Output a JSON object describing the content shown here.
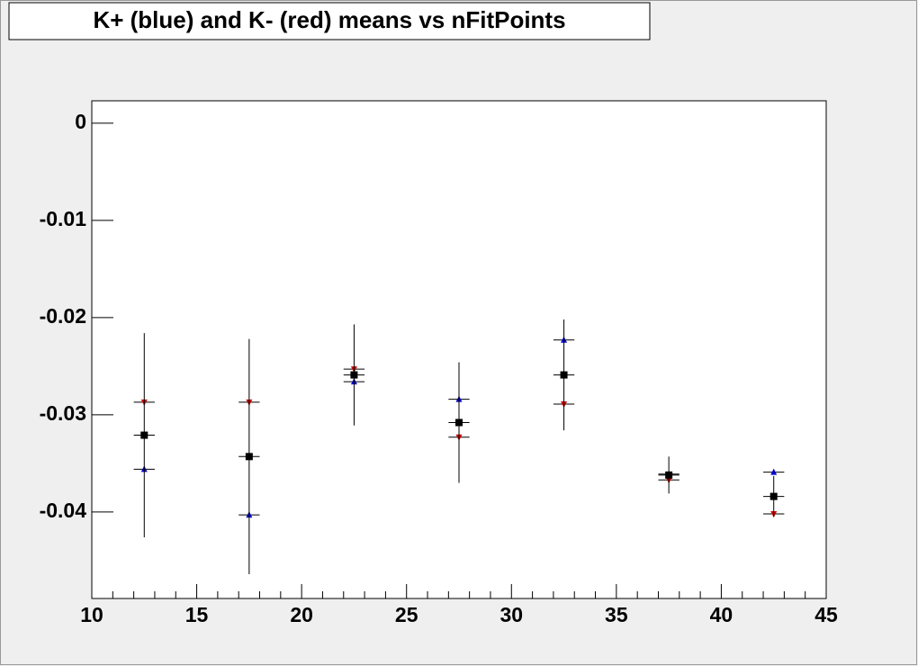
{
  "chart_data": {
    "type": "scatter",
    "title": "K+ (blue) and K- (red) means vs nFitPoints",
    "x": [
      12.5,
      17.5,
      22.5,
      27.5,
      32.5,
      37.5,
      42.5
    ],
    "x_error": 0.5,
    "series": [
      {
        "color": "#0000cc",
        "marker": "triangle-up",
        "values": [
          -0.0356,
          -0.0403,
          -0.0266,
          -0.0284,
          -0.0223,
          -0.0361,
          -0.0359
        ]
      },
      {
        "color": "#cc0000",
        "marker": "triangle-down",
        "values": [
          -0.0287,
          -0.0287,
          -0.0253,
          -0.0323,
          -0.0289,
          -0.0367,
          -0.0402
        ]
      },
      {
        "color": "#000000",
        "marker": "square",
        "values": [
          -0.0321,
          -0.0343,
          -0.0259,
          -0.0308,
          -0.0259,
          -0.0362,
          -0.0384
        ],
        "errors": [
          0.0105,
          0.0121,
          0.0052,
          0.0062,
          0.0057,
          0.0019,
          0.0021
        ]
      }
    ],
    "xlim": [
      10,
      45
    ],
    "xticks": [
      10,
      15,
      20,
      25,
      30,
      35,
      40,
      45
    ],
    "ylim": [
      -0.0489,
      0.0023
    ],
    "yticks": [
      0,
      -0.01,
      -0.02,
      -0.03,
      -0.04
    ]
  }
}
